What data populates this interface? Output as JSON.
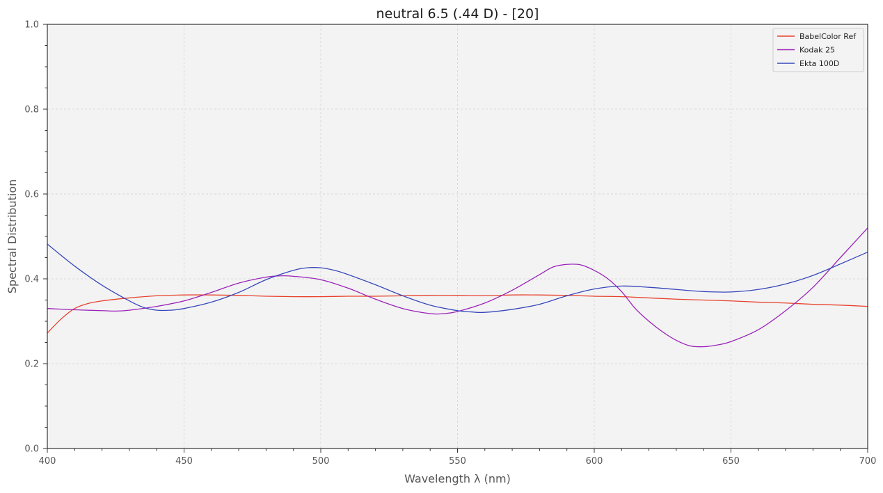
{
  "chart_data": {
    "type": "line",
    "title": "neutral 6.5 (.44 D) - [20]",
    "xlabel": "Wavelength λ (nm)",
    "ylabel": "Spectral Distribution",
    "xlim": [
      400,
      700
    ],
    "ylim": [
      0,
      1
    ],
    "x_ticks": [
      400,
      450,
      500,
      550,
      600,
      650,
      700
    ],
    "x_tick_labels": [
      "400",
      "450",
      "500",
      "550",
      "600",
      "650",
      "700"
    ],
    "y_ticks": [
      0,
      0.2,
      0.4,
      0.6,
      0.8,
      1.0
    ],
    "y_tick_labels": [
      "0.0",
      "0.2",
      "0.4",
      "0.6",
      "0.8",
      "1.0"
    ],
    "grid": true,
    "legend_position": "top-right",
    "series": [
      {
        "name": "BabelColor Ref",
        "color": "#e8412c",
        "x": [
          400,
          405,
          410,
          415,
          420,
          430,
          440,
          450,
          460,
          470,
          480,
          490,
          500,
          510,
          520,
          530,
          540,
          550,
          560,
          570,
          580,
          590,
          600,
          610,
          620,
          630,
          640,
          650,
          660,
          670,
          680,
          690,
          700
        ],
        "y": [
          0.272,
          0.305,
          0.33,
          0.342,
          0.348,
          0.355,
          0.36,
          0.362,
          0.362,
          0.361,
          0.359,
          0.358,
          0.358,
          0.359,
          0.359,
          0.36,
          0.361,
          0.361,
          0.36,
          0.362,
          0.362,
          0.361,
          0.359,
          0.358,
          0.355,
          0.352,
          0.35,
          0.348,
          0.345,
          0.343,
          0.34,
          0.338,
          0.335
        ]
      },
      {
        "name": "Kodak 25",
        "color": "#9b22b8",
        "x": [
          400,
          410,
          420,
          425,
          430,
          440,
          450,
          460,
          470,
          480,
          485,
          490,
          500,
          510,
          520,
          530,
          540,
          545,
          550,
          560,
          570,
          580,
          585,
          590,
          595,
          600,
          605,
          610,
          615,
          620,
          625,
          630,
          635,
          640,
          645,
          650,
          660,
          670,
          680,
          690,
          700
        ],
        "y": [
          0.33,
          0.327,
          0.325,
          0.324,
          0.326,
          0.335,
          0.348,
          0.368,
          0.39,
          0.404,
          0.407,
          0.406,
          0.398,
          0.378,
          0.352,
          0.33,
          0.318,
          0.318,
          0.323,
          0.343,
          0.373,
          0.41,
          0.428,
          0.434,
          0.433,
          0.42,
          0.4,
          0.37,
          0.33,
          0.3,
          0.275,
          0.255,
          0.242,
          0.24,
          0.244,
          0.252,
          0.28,
          0.325,
          0.38,
          0.45,
          0.52
        ]
      },
      {
        "name": "Ekta 100D",
        "color": "#3747bb",
        "x": [
          400,
          410,
          420,
          430,
          435,
          440,
          445,
          450,
          460,
          470,
          480,
          490,
          495,
          500,
          505,
          510,
          520,
          530,
          540,
          550,
          555,
          560,
          570,
          580,
          590,
          600,
          610,
          620,
          630,
          640,
          650,
          660,
          670,
          680,
          690,
          700
        ],
        "y": [
          0.482,
          0.43,
          0.385,
          0.348,
          0.333,
          0.326,
          0.326,
          0.33,
          0.345,
          0.368,
          0.398,
          0.42,
          0.426,
          0.426,
          0.42,
          0.41,
          0.386,
          0.36,
          0.338,
          0.325,
          0.322,
          0.321,
          0.328,
          0.34,
          0.36,
          0.376,
          0.383,
          0.38,
          0.375,
          0.37,
          0.369,
          0.375,
          0.388,
          0.408,
          0.435,
          0.463
        ]
      }
    ]
  }
}
